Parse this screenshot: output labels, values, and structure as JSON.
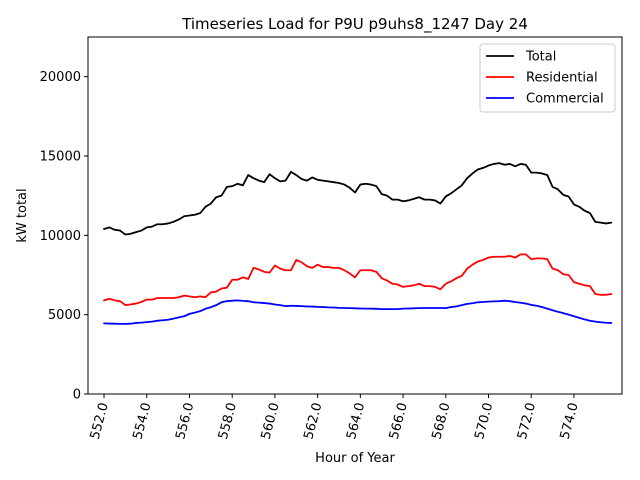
{
  "chart_data": {
    "type": "line",
    "title": "Timeseries Load for P9U p9uhs8_1247  Day 24",
    "xlabel": "Hour of Year",
    "ylabel": "kW total",
    "xlim": [
      551.25,
      576.25
    ],
    "ylim": [
      0,
      22500
    ],
    "xticks": [
      552,
      554,
      556,
      558,
      560,
      562,
      564,
      566,
      568,
      570,
      572,
      574
    ],
    "xtick_labels": [
      "552.0",
      "554.0",
      "556.0",
      "558.0",
      "560.0",
      "562.0",
      "564.0",
      "566.0",
      "568.0",
      "570.0",
      "572.0",
      "574.0"
    ],
    "yticks": [
      0,
      5000,
      10000,
      15000,
      20000
    ],
    "ytick_labels": [
      "0",
      "5000",
      "10000",
      "15000",
      "20000"
    ],
    "legend_position": "top-right",
    "x": [
      552.0,
      552.25,
      552.5,
      552.75,
      553.0,
      553.25,
      553.5,
      553.75,
      554.0,
      554.25,
      554.5,
      554.75,
      555.0,
      555.25,
      555.5,
      555.75,
      556.0,
      556.25,
      556.5,
      556.75,
      557.0,
      557.25,
      557.5,
      557.75,
      558.0,
      558.25,
      558.5,
      558.75,
      559.0,
      559.25,
      559.5,
      559.75,
      560.0,
      560.25,
      560.5,
      560.75,
      561.0,
      561.25,
      561.5,
      561.75,
      562.0,
      562.25,
      562.5,
      562.75,
      563.0,
      563.25,
      563.5,
      563.75,
      564.0,
      564.25,
      564.5,
      564.75,
      565.0,
      565.25,
      565.5,
      565.75,
      566.0,
      566.25,
      566.5,
      566.75,
      567.0,
      567.25,
      567.5,
      567.75,
      568.0,
      568.25,
      568.5,
      568.75,
      569.0,
      569.25,
      569.5,
      569.75,
      570.0,
      570.25,
      570.5,
      570.75,
      571.0,
      571.25,
      571.5,
      571.75,
      572.0,
      572.25,
      572.5,
      572.75,
      573.0,
      573.25,
      573.5,
      573.75,
      574.0,
      574.25,
      574.5,
      574.75,
      575.0,
      575.25,
      575.5,
      575.75
    ],
    "series": [
      {
        "name": "Total",
        "color": "#000000",
        "values": [
          10400,
          10500,
          10350,
          10300,
          10050,
          10100,
          10200,
          10300,
          10500,
          10550,
          10700,
          10700,
          10750,
          10850,
          11000,
          11200,
          11250,
          11300,
          11400,
          11800,
          12000,
          12400,
          12500,
          13050,
          13100,
          13250,
          13150,
          13800,
          13600,
          13450,
          13350,
          13850,
          13600,
          13400,
          13450,
          14000,
          13800,
          13550,
          13450,
          13650,
          13500,
          13450,
          13400,
          13350,
          13300,
          13200,
          13000,
          12700,
          13200,
          13250,
          13200,
          13100,
          12600,
          12500,
          12250,
          12250,
          12150,
          12200,
          12300,
          12400,
          12250,
          12250,
          12200,
          12000,
          12450,
          12650,
          12900,
          13150,
          13600,
          13900,
          14150,
          14250,
          14400,
          14500,
          14550,
          14450,
          14500,
          14350,
          14500,
          14450,
          13950,
          13950,
          13900,
          13800,
          13050,
          12900,
          12550,
          12450,
          11950,
          11800,
          11550,
          11400,
          10850,
          10800,
          10750,
          10800
        ]
      },
      {
        "name": "Residential",
        "color": "#ff0000",
        "values": [
          5900,
          6000,
          5900,
          5850,
          5600,
          5650,
          5700,
          5800,
          5950,
          5950,
          6050,
          6050,
          6050,
          6050,
          6100,
          6200,
          6150,
          6100,
          6150,
          6100,
          6400,
          6450,
          6650,
          6700,
          7200,
          7200,
          7350,
          7250,
          7950,
          7850,
          7700,
          7650,
          8100,
          7900,
          7800,
          7800,
          8450,
          8300,
          8050,
          7950,
          8150,
          8000,
          8000,
          7950,
          7950,
          7800,
          7600,
          7350,
          7800,
          7800,
          7800,
          7700,
          7300,
          7150,
          6950,
          6900,
          6750,
          6800,
          6850,
          6950,
          6800,
          6800,
          6750,
          6600,
          6950,
          7100,
          7300,
          7450,
          7900,
          8150,
          8350,
          8450,
          8600,
          8650,
          8650,
          8650,
          8700,
          8600,
          8800,
          8800,
          8500,
          8550,
          8550,
          8500,
          7900,
          7800,
          7550,
          7500,
          7050,
          6950,
          6850,
          6800,
          6300,
          6250,
          6250,
          6300
        ]
      },
      {
        "name": "Commercial",
        "color": "#0000ff",
        "values": [
          4450,
          4440,
          4430,
          4420,
          4420,
          4430,
          4480,
          4500,
          4530,
          4560,
          4620,
          4650,
          4680,
          4750,
          4830,
          4900,
          5050,
          5130,
          5220,
          5370,
          5470,
          5600,
          5780,
          5850,
          5880,
          5900,
          5870,
          5850,
          5780,
          5760,
          5730,
          5700,
          5640,
          5600,
          5540,
          5560,
          5550,
          5540,
          5520,
          5510,
          5490,
          5480,
          5460,
          5450,
          5430,
          5420,
          5410,
          5400,
          5390,
          5380,
          5380,
          5370,
          5350,
          5350,
          5350,
          5350,
          5380,
          5390,
          5400,
          5410,
          5420,
          5420,
          5420,
          5420,
          5410,
          5480,
          5520,
          5600,
          5680,
          5720,
          5780,
          5800,
          5820,
          5840,
          5850,
          5880,
          5850,
          5800,
          5750,
          5700,
          5620,
          5560,
          5480,
          5380,
          5280,
          5180,
          5100,
          5000,
          4900,
          4800,
          4700,
          4620,
          4560,
          4520,
          4490,
          4480
        ]
      }
    ]
  }
}
